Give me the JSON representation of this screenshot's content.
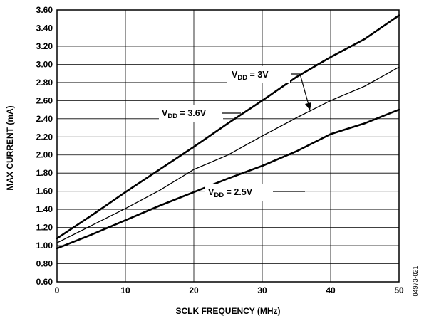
{
  "chart_data": {
    "type": "line",
    "title": "",
    "xlabel": "SCLK FREQUENCY (MHz)",
    "ylabel": "MAX CURRENT (mA)",
    "xlim": [
      0,
      50
    ],
    "ylim": [
      0.6,
      3.6
    ],
    "x_ticks": [
      0,
      10,
      20,
      30,
      40,
      50
    ],
    "y_ticks": [
      0.6,
      0.8,
      1.0,
      1.2,
      1.4,
      1.6,
      1.8,
      2.0,
      2.2,
      2.4,
      2.6,
      2.8,
      3.0,
      3.2,
      3.4,
      3.6
    ],
    "x_tick_labels": [
      "0",
      "10",
      "20",
      "30",
      "40",
      "50"
    ],
    "y_tick_labels": [
      "0.60",
      "0.80",
      "1.00",
      "1.20",
      "1.40",
      "1.60",
      "1.80",
      "2.00",
      "2.20",
      "2.40",
      "2.60",
      "2.80",
      "3.00",
      "3.20",
      "3.40",
      "3.60"
    ],
    "grid": true,
    "legend": "none",
    "series": [
      {
        "label_main": "V",
        "label_sub": "DD",
        "label_tail": " = 3.6V",
        "x": [
          0,
          5,
          10,
          15,
          20,
          25,
          30,
          35,
          40,
          45,
          50
        ],
        "y": [
          1.08,
          1.33,
          1.59,
          1.84,
          2.09,
          2.35,
          2.6,
          2.86,
          3.08,
          3.28,
          3.54
        ],
        "stroke": "#000000",
        "weight": "heavy"
      },
      {
        "label_main": "V",
        "label_sub": "DD",
        "label_tail": " = 3V",
        "x": [
          0,
          5,
          10,
          15,
          20,
          25,
          30,
          35,
          40,
          45,
          50
        ],
        "y": [
          1.03,
          1.22,
          1.41,
          1.61,
          1.84,
          2.0,
          2.21,
          2.41,
          2.6,
          2.76,
          2.97
        ],
        "stroke": "#000000",
        "weight": "light"
      },
      {
        "label_main": "V",
        "label_sub": "DD",
        "label_tail": " = 2.5V",
        "x": [
          0,
          5,
          10,
          15,
          20,
          25,
          30,
          35,
          40,
          45,
          50
        ],
        "y": [
          0.97,
          1.12,
          1.28,
          1.44,
          1.59,
          1.74,
          1.88,
          2.04,
          2.23,
          2.35,
          2.5
        ],
        "stroke": "#000000",
        "weight": "heavy"
      }
    ]
  },
  "figure_id": "04973-021"
}
